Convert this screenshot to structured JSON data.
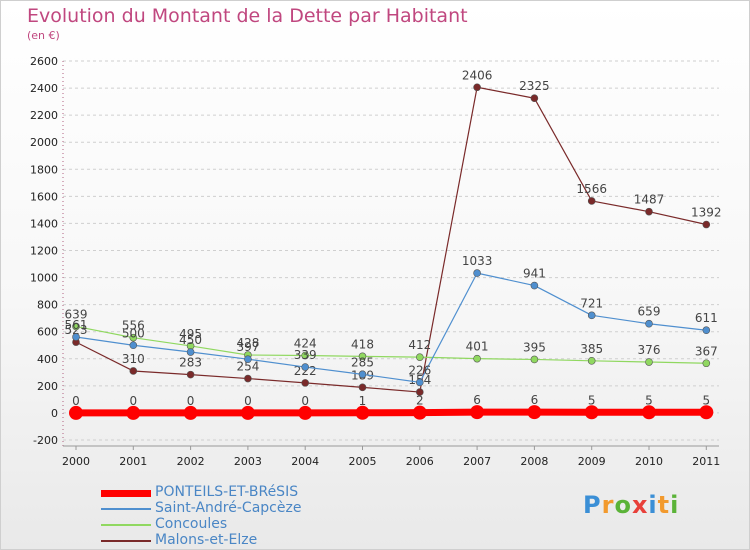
{
  "header": {
    "title": "Evolution du Montant de la Dette par Habitant",
    "subtitle": "(en €)"
  },
  "logo": {
    "text": "Proxiti",
    "colors": [
      "#3b8fd6",
      "#f29a2e",
      "#5bb338",
      "#e8403a",
      "#3b8fd6",
      "#f29a2e",
      "#5bb338"
    ]
  },
  "chart_data": {
    "type": "line",
    "title": "Evolution du Montant de la Dette par Habitant",
    "subtitle": "(en €)",
    "xlabel": "",
    "ylabel": "",
    "x": [
      "2000",
      "2001",
      "2002",
      "2003",
      "2004",
      "2005",
      "2006",
      "2007",
      "2008",
      "2009",
      "2010",
      "2011"
    ],
    "ylim": [
      -200,
      2600
    ],
    "yticks": [
      -200,
      0,
      200,
      400,
      600,
      800,
      1000,
      1200,
      1400,
      1600,
      1800,
      2000,
      2200,
      2400,
      2600
    ],
    "grid": "horizontal dashed",
    "legend_position": "bottom-left",
    "series": [
      {
        "name": "PONTEILS-ET-BRéSIS",
        "color": "#ff0000",
        "line_width": 7,
        "marker_radius": 7,
        "values": [
          0,
          0,
          0,
          0,
          0,
          1,
          2,
          6,
          6,
          5,
          5,
          5
        ],
        "labels": [
          "0",
          "0",
          "0",
          "0",
          "0",
          "1",
          "2",
          "6",
          "6",
          "5",
          "5",
          "5"
        ]
      },
      {
        "name": "Saint-André-Capcèze",
        "color": "#4f8fcf",
        "line_width": 1.2,
        "marker_radius": 3.5,
        "values": [
          561,
          500,
          450,
          397,
          339,
          285,
          226,
          1033,
          941,
          721,
          659,
          611
        ],
        "labels": [
          "561",
          "500",
          "450",
          "397",
          "339",
          "285",
          "226",
          "1033",
          "941",
          "721",
          "659",
          "611"
        ]
      },
      {
        "name": "Concoules",
        "color": "#90d860",
        "line_width": 1.2,
        "marker_radius": 3.5,
        "values": [
          639,
          556,
          495,
          428,
          424,
          418,
          412,
          401,
          395,
          385,
          376,
          367
        ],
        "labels": [
          "639",
          "556",
          "495",
          "428",
          "424",
          "418",
          "412",
          "401",
          "395",
          "385",
          "376",
          "367"
        ]
      },
      {
        "name": "Malons-et-Elze",
        "color": "#7a2a2a",
        "line_width": 1.2,
        "marker_radius": 3.5,
        "values": [
          523,
          310,
          283,
          254,
          222,
          189,
          154,
          2406,
          2325,
          1566,
          1487,
          1392
        ],
        "labels": [
          "523",
          "310",
          "283",
          "254",
          "222",
          "189",
          "154",
          "2406",
          "2325",
          "1566",
          "1487",
          "1392"
        ]
      }
    ]
  }
}
